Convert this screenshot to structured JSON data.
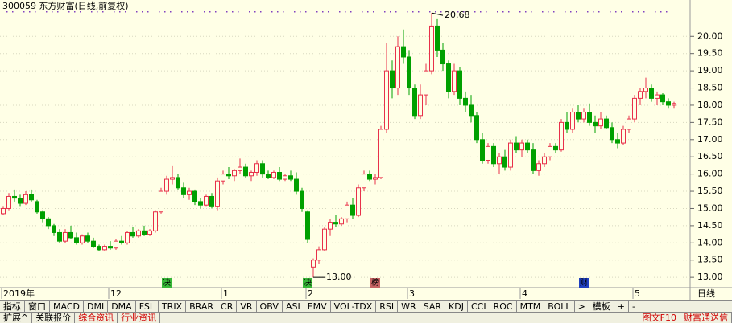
{
  "chart_data": {
    "type": "candlestick",
    "title": "300059 东方财富(日线,前复权)",
    "period": "日线",
    "up_color": "#e8304a",
    "down_color": "#00a000",
    "ylim": [
      12.7,
      20.87
    ],
    "yticks": [
      {
        "value": 13,
        "label": "13.00"
      },
      {
        "value": 13.5,
        "label": "13.50"
      },
      {
        "value": 14,
        "label": "14.00"
      },
      {
        "value": 14.5,
        "label": "14.50"
      },
      {
        "value": 15,
        "label": "15.00"
      },
      {
        "value": 15.5,
        "label": "15.50"
      },
      {
        "value": 16,
        "label": "16.00"
      },
      {
        "value": 16.5,
        "label": "16.50"
      },
      {
        "value": 17,
        "label": "17.00"
      },
      {
        "value": 17.5,
        "label": "17.50"
      },
      {
        "value": 18,
        "label": "18.00"
      },
      {
        "value": 18.5,
        "label": "18.50"
      },
      {
        "value": 19,
        "label": "19.00"
      },
      {
        "value": 19.5,
        "label": "19.50"
      },
      {
        "value": 20,
        "label": "20.00"
      }
    ],
    "ohlc": [
      [
        14.85,
        15.05,
        14.8,
        15.0
      ],
      [
        15.0,
        15.45,
        14.95,
        15.35
      ],
      [
        15.35,
        15.55,
        15.2,
        15.3
      ],
      [
        15.3,
        15.4,
        15.05,
        15.15
      ],
      [
        15.15,
        15.5,
        15.1,
        15.4
      ],
      [
        15.4,
        15.55,
        15.2,
        15.25
      ],
      [
        15.2,
        15.25,
        14.85,
        14.9
      ],
      [
        14.9,
        14.95,
        14.6,
        14.7
      ],
      [
        14.7,
        14.75,
        14.4,
        14.5
      ],
      [
        14.5,
        14.55,
        14.2,
        14.3
      ],
      [
        14.3,
        14.4,
        14.0,
        14.05
      ],
      [
        14.05,
        14.4,
        14.0,
        14.3
      ],
      [
        14.3,
        14.5,
        14.1,
        14.15
      ],
      [
        14.15,
        14.3,
        13.95,
        14.0
      ],
      [
        14.0,
        14.25,
        13.95,
        14.2
      ],
      [
        14.2,
        14.3,
        14.0,
        14.05
      ],
      [
        14.05,
        14.15,
        13.85,
        13.9
      ],
      [
        13.9,
        13.95,
        13.75,
        13.8
      ],
      [
        13.8,
        13.95,
        13.75,
        13.9
      ],
      [
        13.9,
        14.05,
        13.8,
        13.85
      ],
      [
        13.85,
        14.1,
        13.8,
        14.05
      ],
      [
        14.05,
        14.2,
        13.95,
        14.0
      ],
      [
        14.0,
        14.35,
        13.95,
        14.3
      ],
      [
        14.3,
        14.45,
        14.15,
        14.2
      ],
      [
        14.2,
        14.4,
        14.15,
        14.35
      ],
      [
        14.35,
        14.5,
        14.2,
        14.25
      ],
      [
        14.25,
        14.4,
        14.2,
        14.35
      ],
      [
        14.35,
        14.95,
        14.3,
        14.9
      ],
      [
        14.9,
        15.6,
        14.85,
        15.5
      ],
      [
        15.5,
        15.95,
        15.4,
        15.85
      ],
      [
        15.85,
        16.25,
        15.7,
        15.9
      ],
      [
        15.9,
        16.0,
        15.55,
        15.6
      ],
      [
        15.6,
        15.75,
        15.3,
        15.4
      ],
      [
        15.4,
        15.6,
        15.25,
        15.5
      ],
      [
        15.5,
        15.55,
        15.1,
        15.2
      ],
      [
        15.2,
        15.3,
        15.0,
        15.1
      ],
      [
        15.1,
        15.4,
        15.05,
        15.35
      ],
      [
        15.35,
        15.45,
        15.0,
        15.05
      ],
      [
        15.05,
        15.9,
        14.95,
        15.8
      ],
      [
        15.8,
        16.1,
        15.7,
        16.0
      ],
      [
        16.0,
        16.2,
        15.85,
        15.95
      ],
      [
        15.95,
        16.15,
        15.8,
        16.1
      ],
      [
        16.1,
        16.45,
        16.0,
        16.2
      ],
      [
        16.2,
        16.3,
        15.9,
        15.95
      ],
      [
        15.95,
        16.1,
        15.8,
        16.05
      ],
      [
        16.05,
        16.4,
        15.95,
        16.3
      ],
      [
        16.3,
        16.4,
        15.9,
        16.0
      ],
      [
        16.0,
        16.1,
        15.85,
        15.9
      ],
      [
        15.9,
        16.1,
        15.85,
        16.05
      ],
      [
        16.05,
        16.2,
        15.8,
        15.85
      ],
      [
        15.85,
        16.0,
        15.8,
        15.95
      ],
      [
        15.95,
        16.1,
        15.8,
        15.85
      ],
      [
        15.85,
        16.05,
        15.4,
        15.5
      ],
      [
        15.5,
        15.6,
        14.9,
        15.0
      ],
      [
        14.9,
        14.95,
        14.0,
        14.1
      ],
      [
        13.3,
        13.55,
        13.0,
        13.5
      ],
      [
        13.5,
        13.9,
        13.4,
        13.8
      ],
      [
        13.8,
        14.45,
        13.75,
        14.4
      ],
      [
        14.4,
        14.7,
        14.2,
        14.6
      ],
      [
        14.6,
        14.8,
        14.45,
        14.55
      ],
      [
        14.55,
        14.75,
        14.5,
        14.7
      ],
      [
        14.7,
        15.2,
        14.6,
        15.1
      ],
      [
        15.1,
        15.3,
        14.7,
        14.8
      ],
      [
        14.8,
        15.7,
        14.75,
        15.6
      ],
      [
        15.6,
        16.1,
        15.5,
        16.0
      ],
      [
        16.0,
        16.1,
        15.8,
        15.85
      ],
      [
        15.85,
        16.0,
        15.7,
        15.9
      ],
      [
        15.9,
        17.4,
        15.85,
        17.3
      ],
      [
        17.3,
        19.8,
        17.2,
        19.0
      ],
      [
        19.0,
        19.3,
        18.2,
        18.5
      ],
      [
        18.5,
        20.0,
        18.3,
        19.7
      ],
      [
        19.7,
        20.2,
        19.2,
        19.4
      ],
      [
        19.4,
        19.6,
        18.3,
        18.5
      ],
      [
        18.5,
        18.6,
        17.6,
        17.7
      ],
      [
        17.7,
        18.6,
        17.6,
        18.3
      ],
      [
        18.3,
        19.2,
        18.0,
        19.0
      ],
      [
        19.0,
        20.68,
        18.9,
        20.3
      ],
      [
        20.3,
        20.5,
        19.4,
        19.6
      ],
      [
        19.6,
        19.8,
        19.0,
        19.2
      ],
      [
        19.2,
        19.3,
        18.2,
        18.4
      ],
      [
        18.4,
        19.2,
        18.3,
        19.0
      ],
      [
        19.0,
        19.1,
        18.0,
        18.2
      ],
      [
        18.2,
        18.4,
        17.8,
        18.0
      ],
      [
        18.0,
        18.3,
        17.5,
        17.7
      ],
      [
        17.7,
        17.8,
        16.9,
        17.0
      ],
      [
        17.0,
        17.2,
        16.3,
        16.4
      ],
      [
        16.4,
        16.9,
        16.3,
        16.8
      ],
      [
        16.8,
        16.9,
        16.2,
        16.3
      ],
      [
        16.3,
        16.6,
        16.0,
        16.5
      ],
      [
        16.5,
        16.7,
        16.1,
        16.2
      ],
      [
        16.2,
        17.0,
        16.1,
        16.9
      ],
      [
        16.9,
        17.1,
        16.6,
        16.7
      ],
      [
        16.7,
        17.0,
        16.5,
        16.9
      ],
      [
        16.9,
        17.0,
        16.6,
        16.7
      ],
      [
        16.7,
        16.9,
        16.0,
        16.1
      ],
      [
        16.1,
        16.4,
        15.95,
        16.3
      ],
      [
        16.3,
        16.6,
        16.2,
        16.5
      ],
      [
        16.5,
        16.9,
        16.4,
        16.8
      ],
      [
        16.8,
        16.9,
        16.6,
        16.7
      ],
      [
        16.7,
        17.6,
        16.65,
        17.5
      ],
      [
        17.5,
        17.8,
        17.2,
        17.3
      ],
      [
        17.3,
        17.9,
        17.2,
        17.8
      ],
      [
        17.8,
        18.0,
        17.5,
        17.6
      ],
      [
        17.6,
        17.9,
        17.5,
        17.8
      ],
      [
        17.8,
        18.05,
        17.4,
        17.5
      ],
      [
        17.5,
        17.7,
        17.2,
        17.4
      ],
      [
        17.4,
        17.8,
        17.3,
        17.6
      ],
      [
        17.6,
        17.7,
        17.3,
        17.35
      ],
      [
        17.35,
        17.5,
        16.9,
        17.0
      ],
      [
        17.0,
        17.2,
        16.75,
        16.9
      ],
      [
        16.9,
        17.4,
        16.85,
        17.3
      ],
      [
        17.3,
        17.7,
        17.2,
        17.6
      ],
      [
        17.6,
        18.3,
        17.5,
        18.2
      ],
      [
        18.2,
        18.5,
        18.0,
        18.4
      ],
      [
        18.4,
        18.8,
        18.2,
        18.5
      ],
      [
        18.5,
        18.6,
        18.1,
        18.2
      ],
      [
        18.2,
        18.4,
        18.0,
        18.3
      ],
      [
        18.3,
        18.35,
        18.0,
        18.1
      ],
      [
        18.1,
        18.2,
        17.9,
        18.0
      ],
      [
        18.0,
        18.1,
        17.9,
        18.05
      ]
    ],
    "x_labels": [
      {
        "index": 0,
        "label": "2019年"
      },
      {
        "index": 19,
        "label": "12"
      },
      {
        "index": 39,
        "label": "1"
      },
      {
        "index": 54,
        "label": "2"
      },
      {
        "index": 72,
        "label": "3"
      },
      {
        "index": 92,
        "label": "4"
      },
      {
        "index": 112,
        "label": "5"
      }
    ],
    "events": [
      {
        "index": 29,
        "label": "决",
        "color": "#38b838"
      },
      {
        "index": 54,
        "label": "决",
        "color": "#38b838"
      },
      {
        "index": 66,
        "label": "榜",
        "color": "#c86464"
      },
      {
        "index": 103,
        "label": "财",
        "color": "#2040c0"
      }
    ],
    "annotations": [
      {
        "value": 20.68,
        "label": "20.68"
      },
      {
        "value": 13,
        "label": "13.00"
      }
    ]
  },
  "tabs": [
    "指标",
    "窗口",
    "MACD",
    "DMI",
    "DMA",
    "FSL",
    "TRIX",
    "BRAR",
    "CR",
    "VR",
    "OBV",
    "ASI",
    "EMV",
    "VOL-TDX",
    "RSI",
    "WR",
    "SAR",
    "KDJ",
    "CCI",
    "ROC",
    "MTM",
    "BOLL",
    ">",
    "模板",
    "+",
    "-"
  ],
  "bottom_tabs": [
    "扩展^",
    "关联报价",
    "综合资讯",
    "行业资讯"
  ],
  "right_links": [
    "图文F10",
    "财富通送信"
  ]
}
